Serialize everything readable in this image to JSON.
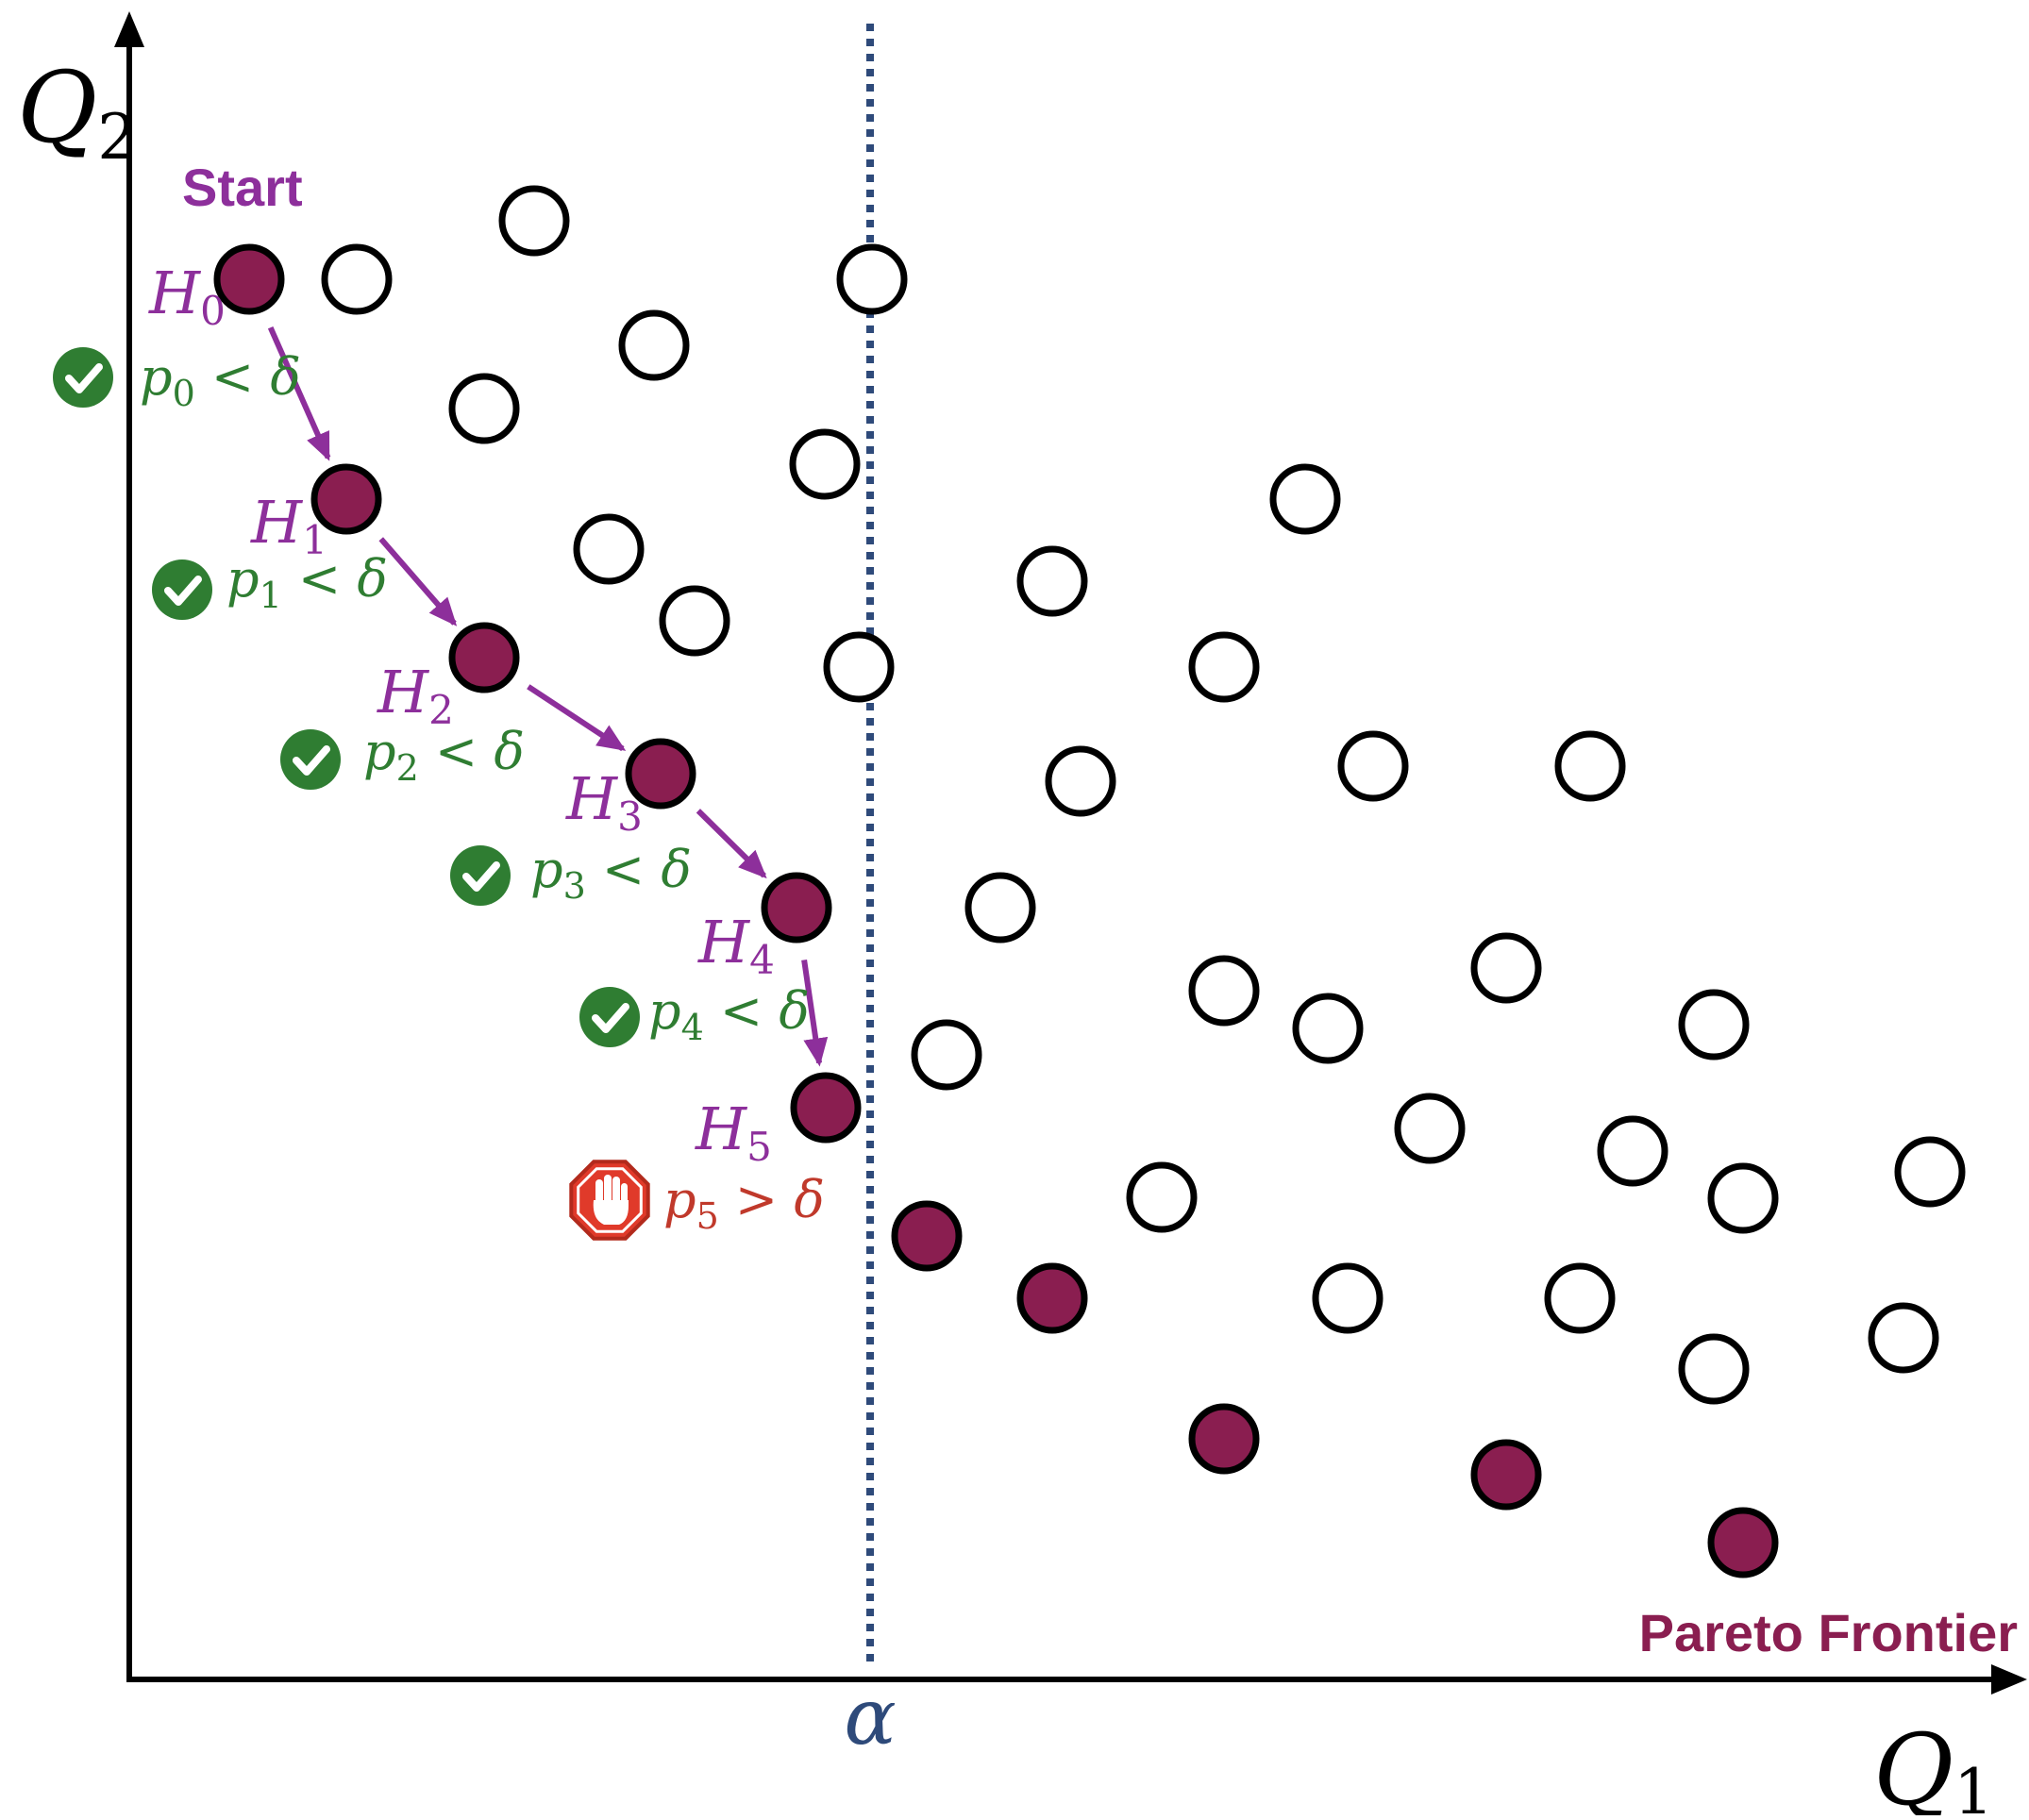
{
  "axes": {
    "x_label": "Q",
    "x_label_sub": "1",
    "y_label": "Q",
    "y_label_sub": "2",
    "threshold_label": "α"
  },
  "labels": {
    "start": "Start",
    "pareto": "Pareto Frontier"
  },
  "colors": {
    "frontier": "#8a1e50",
    "path": "#8d2f9b",
    "check": "#2f7d32",
    "stop": "#e03a2a",
    "stop_text": "#c0392b",
    "threshold": "#2e4a7a"
  },
  "icons": {
    "check": "check-circle-icon",
    "stop": "stop-hand-icon"
  },
  "path_steps": [
    {
      "h": "H",
      "h_sub": "0",
      "test": "p",
      "test_sub": "0",
      "rel": "<",
      "delta": "δ",
      "result": "pass"
    },
    {
      "h": "H",
      "h_sub": "1",
      "test": "p",
      "test_sub": "1",
      "rel": "<",
      "delta": "δ",
      "result": "pass"
    },
    {
      "h": "H",
      "h_sub": "2",
      "test": "p",
      "test_sub": "2",
      "rel": "<",
      "delta": "δ",
      "result": "pass"
    },
    {
      "h": "H",
      "h_sub": "3",
      "test": "p",
      "test_sub": "3",
      "rel": "<",
      "delta": "δ",
      "result": "pass"
    },
    {
      "h": "H",
      "h_sub": "4",
      "test": "p",
      "test_sub": "4",
      "rel": "<",
      "delta": "δ",
      "result": "pass"
    },
    {
      "h": "H",
      "h_sub": "5",
      "test": "p",
      "test_sub": "5",
      "rel": ">",
      "delta": "δ",
      "result": "stop"
    }
  ],
  "frontier_points": 6,
  "other_points": 41
}
